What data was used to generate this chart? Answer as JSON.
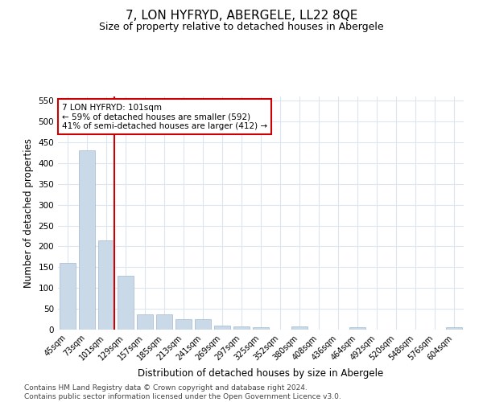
{
  "title": "7, LON HYFRYD, ABERGELE, LL22 8QE",
  "subtitle": "Size of property relative to detached houses in Abergele",
  "xlabel": "Distribution of detached houses by size in Abergele",
  "ylabel": "Number of detached properties",
  "categories": [
    "45sqm",
    "73sqm",
    "101sqm",
    "129sqm",
    "157sqm",
    "185sqm",
    "213sqm",
    "241sqm",
    "269sqm",
    "297sqm",
    "325sqm",
    "352sqm",
    "380sqm",
    "408sqm",
    "436sqm",
    "464sqm",
    "492sqm",
    "520sqm",
    "548sqm",
    "576sqm",
    "604sqm"
  ],
  "values": [
    160,
    430,
    215,
    130,
    37,
    37,
    25,
    25,
    10,
    8,
    5,
    0,
    7,
    0,
    0,
    6,
    0,
    0,
    0,
    0,
    5
  ],
  "bar_color": "#c9d9e8",
  "bar_edge_color": "#a0b8d0",
  "highlight_index": 2,
  "highlight_line_color": "#cc0000",
  "annotation_text": "7 LON HYFRYD: 101sqm\n← 59% of detached houses are smaller (592)\n41% of semi-detached houses are larger (412) →",
  "annotation_box_color": "#ffffff",
  "annotation_box_edge": "#cc0000",
  "ylim": [
    0,
    560
  ],
  "yticks": [
    0,
    50,
    100,
    150,
    200,
    250,
    300,
    350,
    400,
    450,
    500,
    550
  ],
  "grid_color": "#dce6f0",
  "background_color": "#ffffff",
  "footer": "Contains HM Land Registry data © Crown copyright and database right 2024.\nContains public sector information licensed under the Open Government Licence v3.0.",
  "title_fontsize": 11,
  "subtitle_fontsize": 9,
  "xlabel_fontsize": 8.5,
  "ylabel_fontsize": 8.5,
  "footer_fontsize": 6.5,
  "annotation_fontsize": 7.5
}
